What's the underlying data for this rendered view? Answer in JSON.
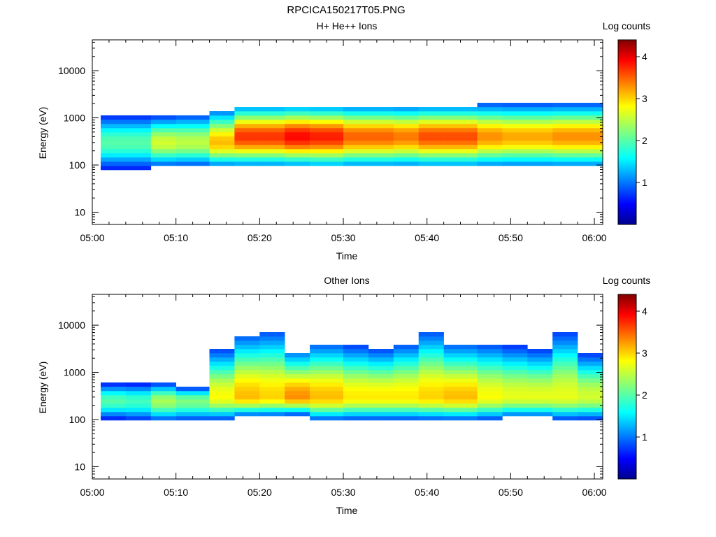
{
  "page": {
    "title": "RPCICA150217T05.PNG"
  },
  "colors": {
    "low": "#00008f",
    "mid": "#00ffff",
    "high": "#ff0000",
    "max": "#800000"
  },
  "chart_data": [
    {
      "type": "heatmap",
      "title": "H+ He++ Ions",
      "xlabel": "Time",
      "ylabel": "Energy (eV)",
      "colorbar_label": "Log counts",
      "x_ticks": [
        "05:00",
        "05:10",
        "05:20",
        "05:30",
        "05:40",
        "05:50",
        "06:00"
      ],
      "y_ticks": [
        "10",
        "100",
        "1000",
        "10000"
      ],
      "y_scale": "log",
      "ylim": [
        5.5,
        45000
      ],
      "colorbar_ticks": [
        "1",
        "2",
        "3",
        "4"
      ],
      "colorbar_range": [
        0,
        4.4
      ],
      "x_range": [
        "05:00",
        "06:01"
      ],
      "grid": false,
      "columns": [
        {
          "start": "05:01",
          "end": "05:04",
          "peak_energy": 300,
          "peak_log_counts": 2.0,
          "low_edge": 80,
          "high_edge": 1200
        },
        {
          "start": "05:04",
          "end": "05:07",
          "peak_energy": 300,
          "peak_log_counts": 2.0,
          "low_edge": 80,
          "high_edge": 1200
        },
        {
          "start": "05:07",
          "end": "05:10",
          "peak_energy": 300,
          "peak_log_counts": 2.6,
          "low_edge": 90,
          "high_edge": 1100
        },
        {
          "start": "05:10",
          "end": "05:14",
          "peak_energy": 300,
          "peak_log_counts": 2.5,
          "low_edge": 90,
          "high_edge": 1200
        },
        {
          "start": "05:14",
          "end": "05:17",
          "peak_energy": 300,
          "peak_log_counts": 3.1,
          "low_edge": 90,
          "high_edge": 1500
        },
        {
          "start": "05:17",
          "end": "05:20",
          "peak_energy": 400,
          "peak_log_counts": 3.7,
          "low_edge": 95,
          "high_edge": 1800
        },
        {
          "start": "05:20",
          "end": "05:23",
          "peak_energy": 400,
          "peak_log_counts": 3.7,
          "low_edge": 95,
          "high_edge": 1800
        },
        {
          "start": "05:23",
          "end": "05:26",
          "peak_energy": 400,
          "peak_log_counts": 3.9,
          "low_edge": 95,
          "high_edge": 1800
        },
        {
          "start": "05:26",
          "end": "05:30",
          "peak_energy": 400,
          "peak_log_counts": 3.8,
          "low_edge": 90,
          "high_edge": 1800
        },
        {
          "start": "05:30",
          "end": "05:33",
          "peak_energy": 400,
          "peak_log_counts": 3.5,
          "low_edge": 90,
          "high_edge": 1800
        },
        {
          "start": "05:33",
          "end": "05:36",
          "peak_energy": 400,
          "peak_log_counts": 3.5,
          "low_edge": 90,
          "high_edge": 1800
        },
        {
          "start": "05:36",
          "end": "05:39",
          "peak_energy": 400,
          "peak_log_counts": 3.4,
          "low_edge": 90,
          "high_edge": 1800
        },
        {
          "start": "05:39",
          "end": "05:42",
          "peak_energy": 400,
          "peak_log_counts": 3.6,
          "low_edge": 90,
          "high_edge": 1800
        },
        {
          "start": "05:42",
          "end": "05:46",
          "peak_energy": 400,
          "peak_log_counts": 3.6,
          "low_edge": 90,
          "high_edge": 1800
        },
        {
          "start": "05:46",
          "end": "05:49",
          "peak_energy": 400,
          "peak_log_counts": 3.3,
          "low_edge": 90,
          "high_edge": 1900
        },
        {
          "start": "05:49",
          "end": "05:52",
          "peak_energy": 400,
          "peak_log_counts": 3.2,
          "low_edge": 90,
          "high_edge": 1900
        },
        {
          "start": "05:52",
          "end": "05:55",
          "peak_energy": 400,
          "peak_log_counts": 3.2,
          "low_edge": 90,
          "high_edge": 1900
        },
        {
          "start": "05:55",
          "end": "05:58",
          "peak_energy": 400,
          "peak_log_counts": 3.3,
          "low_edge": 90,
          "high_edge": 1900
        },
        {
          "start": "05:58",
          "end": "06:01",
          "peak_energy": 400,
          "peak_log_counts": 3.3,
          "low_edge": 90,
          "high_edge": 1900
        }
      ]
    },
    {
      "type": "heatmap",
      "title": "Other Ions",
      "xlabel": "Time",
      "ylabel": "Energy (eV)",
      "colorbar_label": "Log counts",
      "x_ticks": [
        "05:00",
        "05:10",
        "05:20",
        "05:30",
        "05:40",
        "05:50",
        "06:00"
      ],
      "y_ticks": [
        "10",
        "100",
        "1000",
        "10000"
      ],
      "y_scale": "log",
      "ylim": [
        5.5,
        45000
      ],
      "colorbar_ticks": [
        "1",
        "2",
        "3",
        "4"
      ],
      "colorbar_range": [
        0,
        4.4
      ],
      "x_range": [
        "05:00",
        "06:01"
      ],
      "grid": false,
      "columns": [
        {
          "start": "05:01",
          "end": "05:04",
          "peak_energy": 250,
          "peak_log_counts": 2.0,
          "low_edge": 100,
          "high_edge": 600
        },
        {
          "start": "05:04",
          "end": "05:07",
          "peak_energy": 250,
          "peak_log_counts": 1.9,
          "low_edge": 90,
          "high_edge": 600
        },
        {
          "start": "05:07",
          "end": "05:10",
          "peak_energy": 250,
          "peak_log_counts": 2.4,
          "low_edge": 90,
          "high_edge": 600
        },
        {
          "start": "05:10",
          "end": "05:14",
          "peak_energy": 250,
          "peak_log_counts": 2.2,
          "low_edge": 90,
          "high_edge": 500
        },
        {
          "start": "05:14",
          "end": "05:17",
          "peak_energy": 300,
          "peak_log_counts": 2.8,
          "low_edge": 100,
          "high_edge": 3000
        },
        {
          "start": "05:17",
          "end": "05:20",
          "peak_energy": 300,
          "peak_log_counts": 3.1,
          "low_edge": 120,
          "high_edge": 6000
        },
        {
          "start": "05:20",
          "end": "05:23",
          "peak_energy": 300,
          "peak_log_counts": 3.0,
          "low_edge": 120,
          "high_edge": 7000
        },
        {
          "start": "05:23",
          "end": "05:26",
          "peak_energy": 300,
          "peak_log_counts": 3.3,
          "low_edge": 130,
          "high_edge": 2800
        },
        {
          "start": "05:26",
          "end": "05:30",
          "peak_energy": 300,
          "peak_log_counts": 3.1,
          "low_edge": 100,
          "high_edge": 4000
        },
        {
          "start": "05:30",
          "end": "05:33",
          "peak_energy": 300,
          "peak_log_counts": 2.9,
          "low_edge": 100,
          "high_edge": 3500
        },
        {
          "start": "05:33",
          "end": "05:36",
          "peak_energy": 300,
          "peak_log_counts": 2.9,
          "low_edge": 100,
          "high_edge": 3000
        },
        {
          "start": "05:36",
          "end": "05:39",
          "peak_energy": 300,
          "peak_log_counts": 2.9,
          "low_edge": 100,
          "high_edge": 4000
        },
        {
          "start": "05:39",
          "end": "05:42",
          "peak_energy": 300,
          "peak_log_counts": 3.0,
          "low_edge": 100,
          "high_edge": 7000
        },
        {
          "start": "05:42",
          "end": "05:46",
          "peak_energy": 300,
          "peak_log_counts": 3.1,
          "low_edge": 100,
          "high_edge": 4000
        },
        {
          "start": "05:46",
          "end": "05:49",
          "peak_energy": 300,
          "peak_log_counts": 2.8,
          "low_edge": 100,
          "high_edge": 4000
        },
        {
          "start": "05:49",
          "end": "05:52",
          "peak_energy": 300,
          "peak_log_counts": 2.7,
          "low_edge": 110,
          "high_edge": 3500
        },
        {
          "start": "05:52",
          "end": "05:55",
          "peak_energy": 300,
          "peak_log_counts": 2.7,
          "low_edge": 110,
          "high_edge": 3000
        },
        {
          "start": "05:55",
          "end": "05:58",
          "peak_energy": 300,
          "peak_log_counts": 2.7,
          "low_edge": 100,
          "high_edge": 7000
        },
        {
          "start": "05:58",
          "end": "06:01",
          "peak_energy": 300,
          "peak_log_counts": 2.6,
          "low_edge": 100,
          "high_edge": 2500
        }
      ]
    }
  ]
}
